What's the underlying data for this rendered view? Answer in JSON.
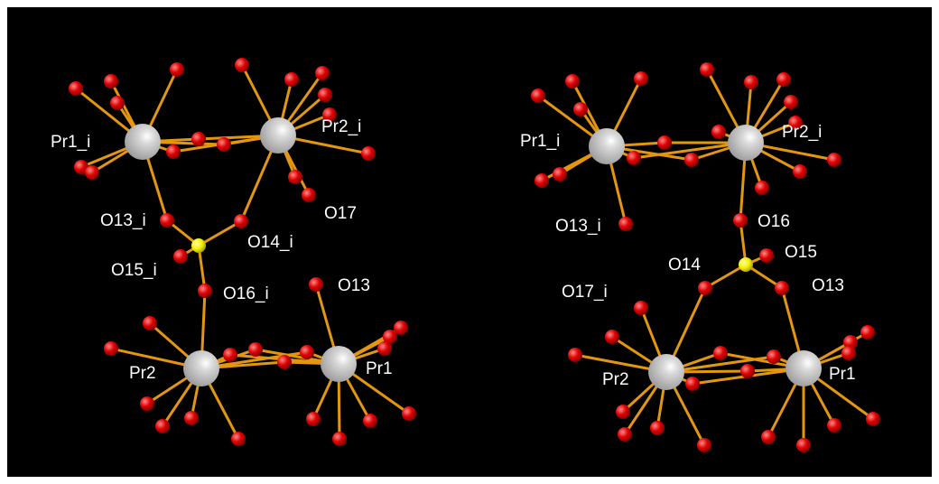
{
  "colors": {
    "background": "#000000",
    "border": "#ffffff",
    "bond": "#e3960f",
    "oxygen": "#e00000",
    "metal": "#c8c8c8",
    "sulfur": "#f5f000",
    "label": "#ffffff"
  },
  "panels": [
    {
      "id": "left",
      "labels": {
        "pr1_i": "Pr1_i",
        "pr2_i": "Pr2_i",
        "o13_i": "O13_i",
        "o17": "O17",
        "o14_i": "O14_i",
        "o15_i": "O15_i",
        "o16_i": "O16_i",
        "o13": "O13",
        "pr2": "Pr2",
        "pr1": "Pr1"
      }
    },
    {
      "id": "right",
      "labels": {
        "pr1_i": "Pr1_i",
        "pr2_i": "Pr2_i",
        "o13_i": "O13_i",
        "o16": "O16",
        "o15": "O15",
        "o14": "O14",
        "o13": "O13",
        "o17_i": "O17_i",
        "pr2": "Pr2",
        "pr1": "Pr1"
      }
    }
  ]
}
